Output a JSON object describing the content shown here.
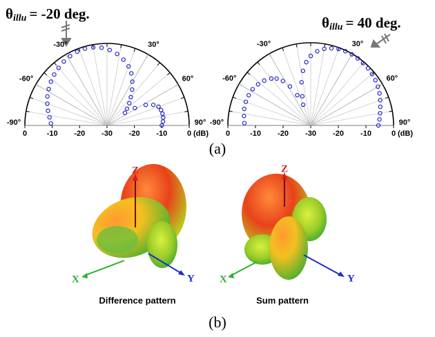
{
  "chart_data": [
    {
      "type": "polar",
      "title_symbol": "θ",
      "title_subscript": "illu",
      "title_text": "= -20 deg.",
      "rlim": [
        -30,
        0
      ],
      "rticks": [
        -30,
        -20,
        -10,
        0
      ],
      "r_label": "(dB)",
      "thetalim": [
        -90,
        90
      ],
      "thetaticks": [
        {
          "value": -90,
          "label": "-90°"
        },
        {
          "value": -60,
          "label": "-60°"
        },
        {
          "value": -30,
          "label": "-30°"
        },
        {
          "value": 30,
          "label": "30°"
        },
        {
          "value": 60,
          "label": "60°"
        },
        {
          "value": 90,
          "label": "90°"
        }
      ],
      "series": [
        {
          "color": "#2222cc",
          "theta": [
            -88,
            -82,
            -76,
            -70,
            -64,
            -58,
            -52,
            -46,
            -40,
            -34,
            -28,
            -22,
            -16,
            -10,
            -4,
            2,
            8,
            14,
            20,
            25,
            30,
            35,
            40,
            45,
            50,
            55,
            58,
            62,
            66,
            70,
            74,
            78,
            82,
            86,
            90
          ],
          "values": [
            -9.5,
            -8.8,
            -7.8,
            -6.8,
            -5.8,
            -4.9,
            -4,
            -3.2,
            -2.5,
            -1.8,
            -1.3,
            -0.9,
            -0.8,
            -1,
            -1.5,
            -2.4,
            -3.6,
            -5.2,
            -7,
            -9,
            -11.5,
            -14,
            -16.5,
            -18.5,
            -20.5,
            -22,
            -18,
            -14,
            -11.5,
            -10,
            -9.5,
            -9.3,
            -9.3,
            -9.5,
            -10
          ]
        }
      ]
    },
    {
      "type": "polar",
      "title_symbol": "θ",
      "title_subscript": "illu",
      "title_text": "= 40 deg.",
      "rlim": [
        -30,
        0
      ],
      "rticks": [
        -30,
        -20,
        -10,
        0
      ],
      "r_label": "(dB)",
      "thetalim": [
        -90,
        90
      ],
      "thetaticks": [
        {
          "value": -90,
          "label": "-90°"
        },
        {
          "value": -60,
          "label": "-60°"
        },
        {
          "value": -30,
          "label": "-30°"
        },
        {
          "value": 30,
          "label": "30°"
        },
        {
          "value": 60,
          "label": "60°"
        },
        {
          "value": 90,
          "label": "90°"
        }
      ],
      "series": [
        {
          "color": "#2222cc",
          "theta": [
            -88,
            -82,
            -76,
            -70,
            -64,
            -58,
            -52,
            -46,
            -40,
            -36,
            -32,
            -28,
            -24,
            -20,
            -16,
            -12,
            -8,
            -4,
            0,
            5,
            10,
            15,
            20,
            25,
            30,
            35,
            40,
            45,
            50,
            55,
            60,
            65,
            70,
            75,
            80,
            85,
            90
          ],
          "values": [
            -6,
            -5.6,
            -5.2,
            -5,
            -5,
            -5.2,
            -5.8,
            -6.6,
            -7.8,
            -9,
            -11,
            -14,
            -18,
            -22,
            -19,
            -14,
            -10,
            -7,
            -4.8,
            -3,
            -1.8,
            -1,
            -0.5,
            -0.3,
            -0.2,
            -0.3,
            -0.5,
            -0.7,
            -1,
            -1.4,
            -1.9,
            -2.5,
            -3.2,
            -3.9,
            -4.5,
            -5,
            -5.5
          ]
        }
      ]
    }
  ],
  "captions": {
    "a": "(a)",
    "b": "(b)"
  },
  "patterns": [
    {
      "axis_z": "Z",
      "axis_x": "X",
      "axis_y": "Y",
      "label": "Difference pattern"
    },
    {
      "axis_z": "Z",
      "axis_x": "X",
      "axis_y": "Y",
      "label": "Sum pattern"
    }
  ]
}
